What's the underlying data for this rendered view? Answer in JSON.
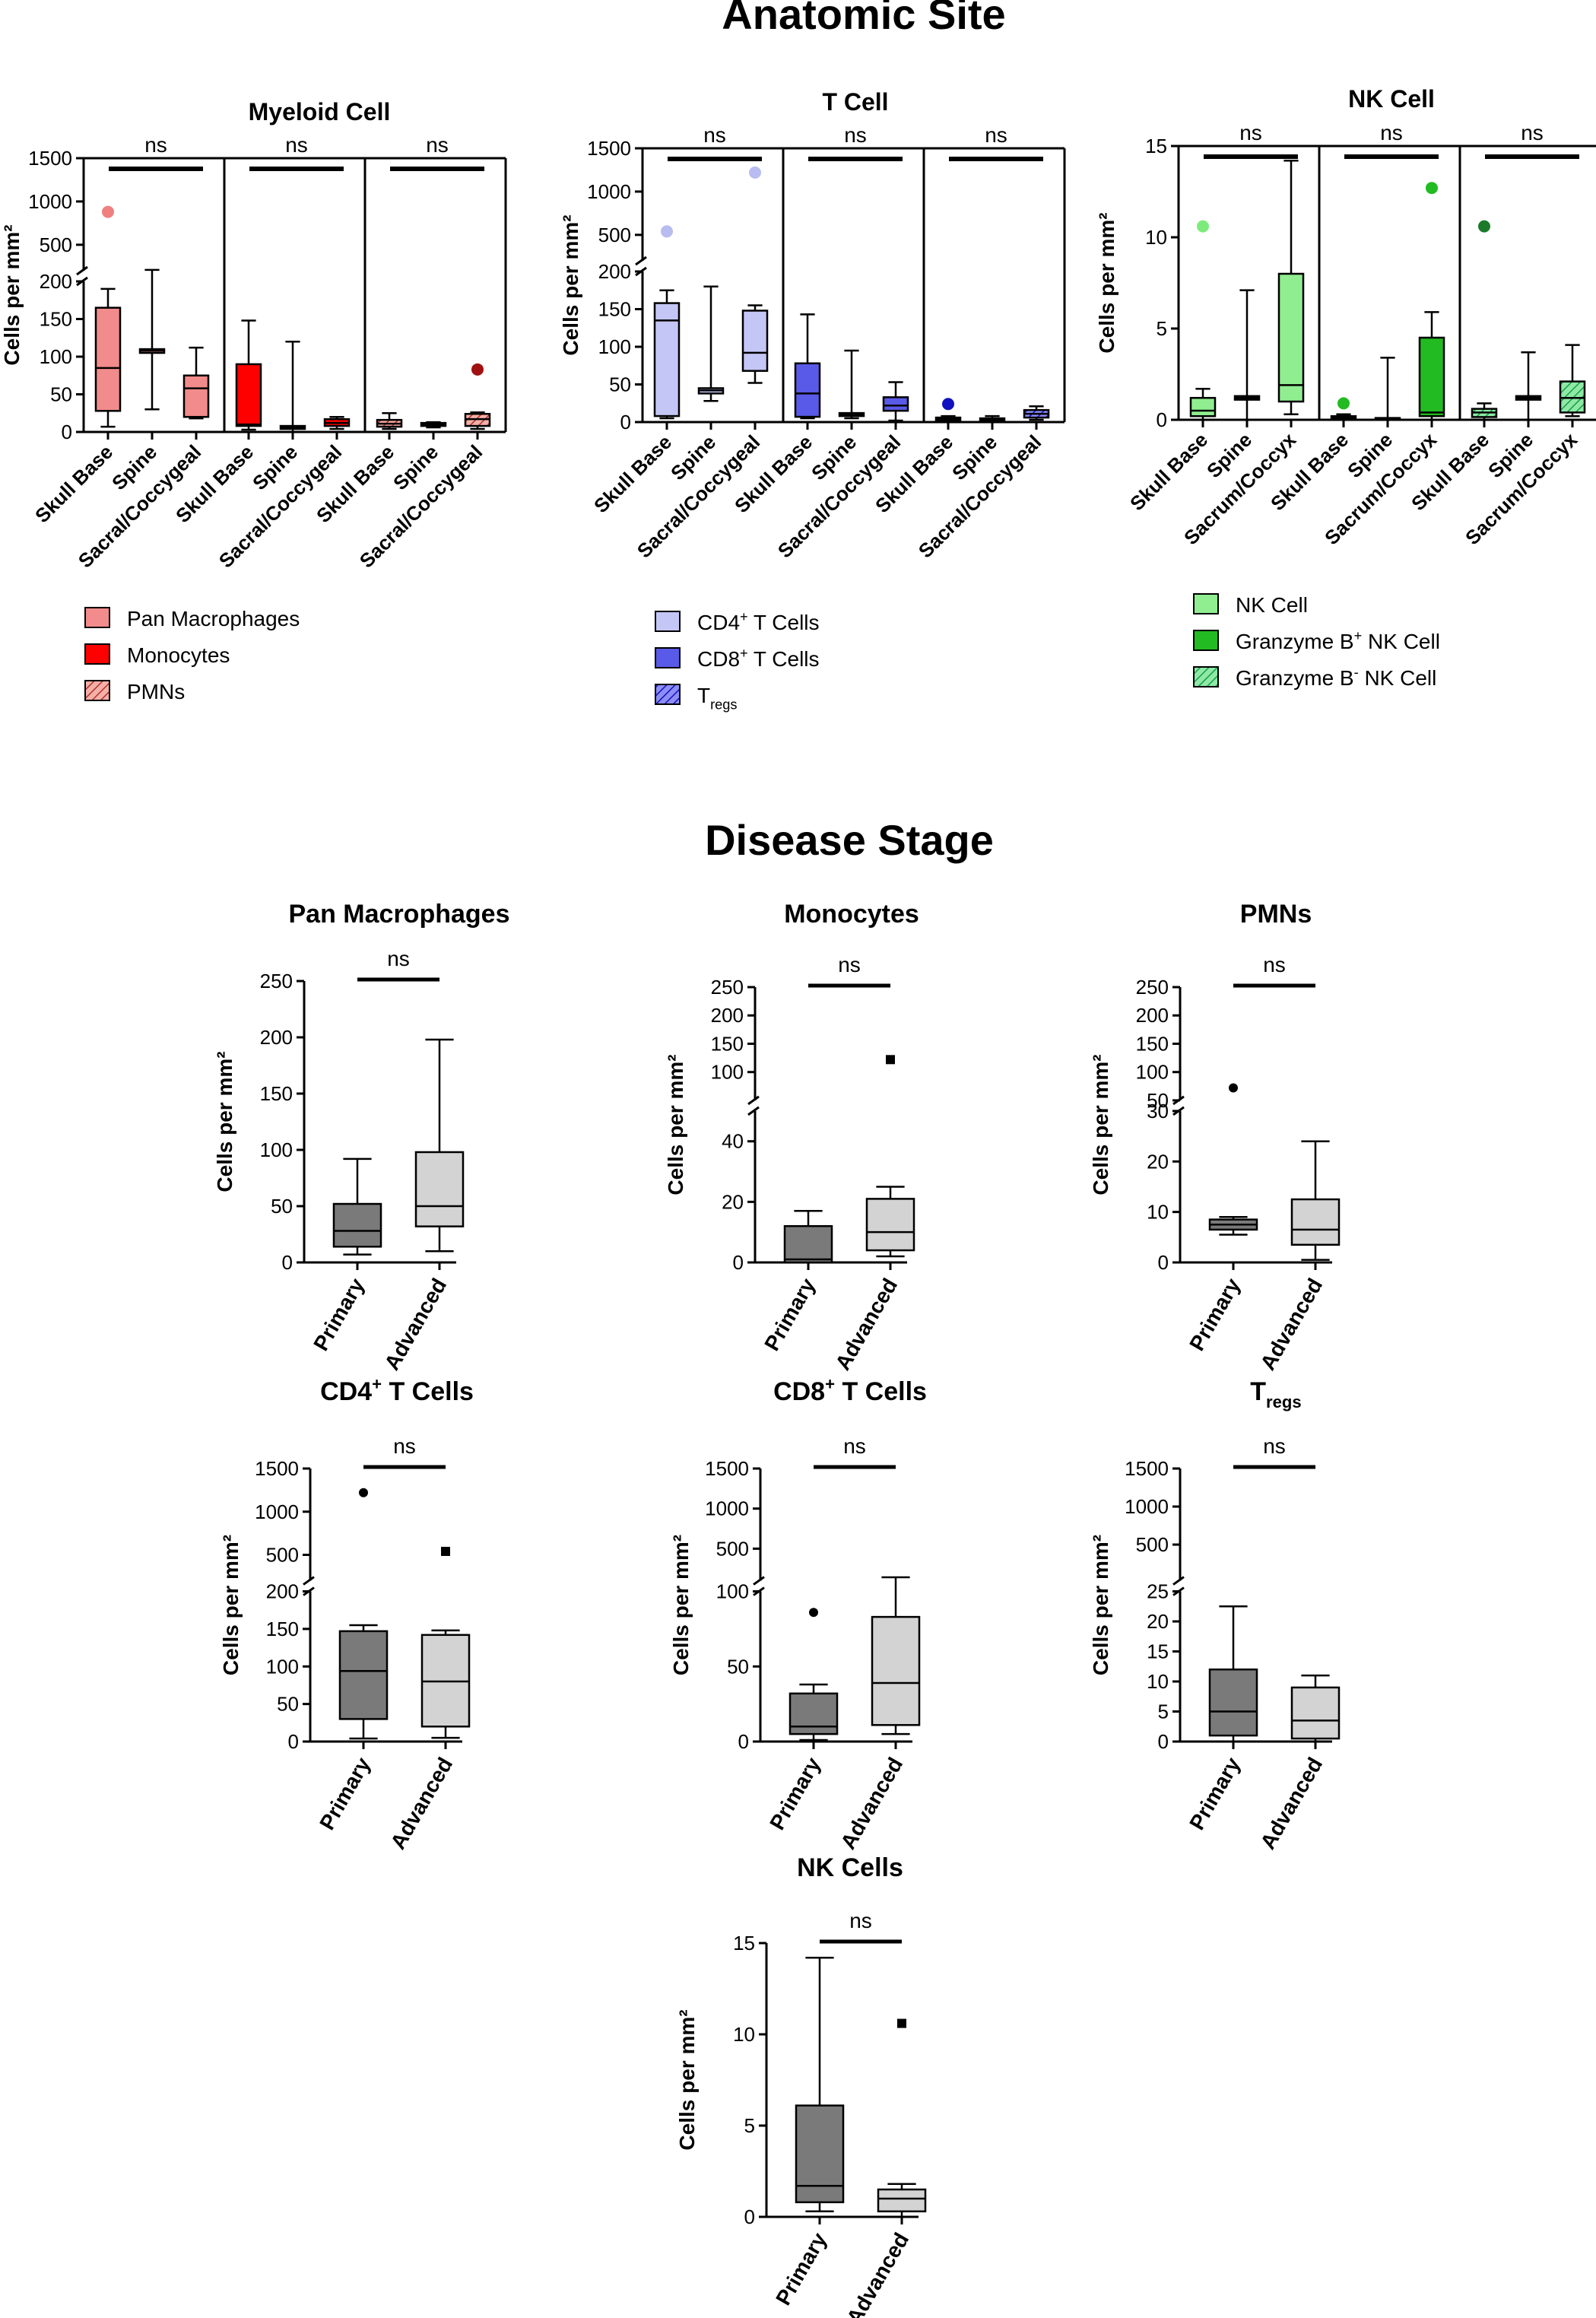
{
  "page": {
    "section1_title": "Anatomic Site",
    "section2_title": "Disease Stage",
    "y_label": "Cells per mm²"
  },
  "colors": {
    "pan_macrophages": "#f28b8b",
    "monocytes": "#ff0000",
    "pmns": "#d9534f",
    "cd4": "#c4c6f5",
    "cd8": "#5a5ae8",
    "tregs": "#2020e0",
    "nk": "#90ee90",
    "gzb_pos": "#22bb22",
    "gzb_neg": "#33cc66",
    "primary": "#7a7a7a",
    "advanced": "#d3d3d3"
  },
  "chart_data": [
    {
      "id": "myeloid",
      "type": "box",
      "title": "Myeloid Cell",
      "ylabel": "Cells per mm²",
      "y_axis": {
        "lower": [
          0,
          200
        ],
        "upper": [
          200,
          1500
        ],
        "lower_ticks": [
          0,
          50,
          100,
          150,
          200
        ],
        "upper_ticks": [
          200,
          500,
          1000,
          1500
        ]
      },
      "categories": [
        "Skull Base",
        "Spine",
        "Sacral/Coccygeal"
      ],
      "panels": [
        {
          "name": "Pan Macrophages",
          "sig": "ns",
          "color_key": "pan_macrophages",
          "pattern": "solid",
          "boxes": [
            {
              "min": 7,
              "q1": 28,
              "median": 85,
              "q3": 165,
              "max": 190,
              "outliers": [
                880
              ]
            },
            {
              "min": 30,
              "q1": 105,
              "median": 108,
              "q3": 110,
              "max": 210,
              "outliers": []
            },
            {
              "min": 18,
              "q1": 20,
              "median": 58,
              "q3": 75,
              "max": 112,
              "outliers": []
            }
          ]
        },
        {
          "name": "Monocytes",
          "sig": "ns",
          "color_key": "monocytes",
          "pattern": "solid",
          "boxes": [
            {
              "min": 3,
              "q1": 8,
              "median": 10,
              "q3": 90,
              "max": 148,
              "outliers": []
            },
            {
              "min": 0,
              "q1": 4,
              "median": 6,
              "q3": 8,
              "max": 120,
              "outliers": []
            },
            {
              "min": 4,
              "q1": 8,
              "median": 12,
              "q3": 17,
              "max": 20,
              "outliers": []
            }
          ]
        },
        {
          "name": "PMNs",
          "sig": "ns",
          "color_key": "pmns",
          "pattern": "hatch",
          "boxes": [
            {
              "min": 4,
              "q1": 7,
              "median": 11,
              "q3": 16,
              "max": 25,
              "outliers": []
            },
            {
              "min": 6,
              "q1": 8,
              "median": 10,
              "q3": 12,
              "max": 13,
              "outliers": []
            },
            {
              "min": 4,
              "q1": 8,
              "median": 17,
              "q3": 24,
              "max": 26,
              "outliers": [
                83
              ]
            }
          ]
        }
      ],
      "legend": [
        "Pan Macrophages",
        "Monocytes",
        "PMNs"
      ]
    },
    {
      "id": "tcell",
      "type": "box",
      "title": "T Cell",
      "ylabel": "Cells per mm²",
      "y_axis": {
        "lower": [
          0,
          200
        ],
        "upper": [
          200,
          1500
        ],
        "lower_ticks": [
          0,
          50,
          100,
          150,
          200
        ],
        "upper_ticks": [
          200,
          500,
          1000,
          1500
        ]
      },
      "categories": [
        "Skull Base",
        "Spine",
        "Sacral/Coccygeal"
      ],
      "panels": [
        {
          "name": "CD4+ T Cells",
          "sig": "ns",
          "color_key": "cd4",
          "pattern": "solid",
          "boxes": [
            {
              "min": 5,
              "q1": 8,
              "median": 135,
              "q3": 158,
              "max": 175,
              "outliers": [
                540
              ]
            },
            {
              "min": 28,
              "q1": 38,
              "median": 42,
              "q3": 45,
              "max": 180,
              "outliers": []
            },
            {
              "min": 52,
              "q1": 68,
              "median": 92,
              "q3": 148,
              "max": 155,
              "outliers": [
                1220
              ]
            }
          ]
        },
        {
          "name": "CD8+ T Cells",
          "sig": "ns",
          "color_key": "cd8",
          "pattern": "solid",
          "boxes": [
            {
              "min": 5,
              "q1": 7,
              "median": 38,
              "q3": 78,
              "max": 143,
              "outliers": []
            },
            {
              "min": 5,
              "q1": 8,
              "median": 10,
              "q3": 12,
              "max": 95,
              "outliers": []
            },
            {
              "min": 2,
              "q1": 15,
              "median": 22,
              "q3": 33,
              "max": 53,
              "outliers": []
            }
          ]
        },
        {
          "name": "Tregs",
          "sig": "ns",
          "color_key": "tregs",
          "pattern": "hatch",
          "boxes": [
            {
              "min": 0,
              "q1": 2,
              "median": 4,
              "q3": 6,
              "max": 8,
              "outliers": [
                24
              ]
            },
            {
              "min": 0,
              "q1": 2,
              "median": 4,
              "q3": 5,
              "max": 8,
              "outliers": []
            },
            {
              "min": 3,
              "q1": 6,
              "median": 11,
              "q3": 16,
              "max": 21,
              "outliers": []
            }
          ]
        }
      ],
      "legend_parts": [
        {
          "main": "CD4",
          "sup": "+",
          "sub": "",
          "rest": " T Cells"
        },
        {
          "main": "CD8",
          "sup": "+",
          "sub": "",
          "rest": " T Cells"
        },
        {
          "main": "T",
          "sup": "",
          "sub": "regs",
          "rest": ""
        }
      ]
    },
    {
      "id": "nkcell",
      "type": "box",
      "title": "NK Cell",
      "ylabel": "Cells per mm²",
      "y_axis": {
        "range": [
          0,
          15
        ],
        "ticks": [
          0,
          5,
          10,
          15
        ]
      },
      "categories": [
        "Skull Base",
        "Spine",
        "Sacrum/Coccyx"
      ],
      "panels": [
        {
          "name": "NK Cell",
          "sig": "ns",
          "color_key": "nk",
          "pattern": "solid",
          "boxes": [
            {
              "min": 0,
              "q1": 0.2,
              "median": 0.5,
              "q3": 1.2,
              "max": 1.7,
              "outliers": [
                10.6
              ]
            },
            {
              "min": 0,
              "q1": 1.1,
              "median": 1.2,
              "q3": 1.3,
              "max": 7.1,
              "outliers": []
            },
            {
              "min": 0.3,
              "q1": 1.0,
              "median": 1.9,
              "q3": 8.0,
              "max": 14.2,
              "outliers": []
            }
          ]
        },
        {
          "name": "Granzyme B+ NK Cell",
          "sig": "ns",
          "color_key": "gzb_pos",
          "pattern": "solid",
          "boxes": [
            {
              "min": 0,
              "q1": 0.05,
              "median": 0.1,
              "q3": 0.2,
              "max": 0.3,
              "outliers": [
                0.9
              ]
            },
            {
              "min": 0,
              "q1": 0,
              "median": 0.05,
              "q3": 0.1,
              "max": 3.4,
              "outliers": []
            },
            {
              "min": 0,
              "q1": 0.2,
              "median": 0.4,
              "q3": 4.5,
              "max": 5.9,
              "outliers": [
                12.7
              ]
            }
          ]
        },
        {
          "name": "Granzyme B- NK Cell",
          "sig": "ns",
          "color_key": "gzb_neg",
          "pattern": "hatch",
          "boxes": [
            {
              "min": 0,
              "q1": 0.15,
              "median": 0.4,
              "q3": 0.6,
              "max": 0.9,
              "outliers": [
                10.6
              ]
            },
            {
              "min": 0,
              "q1": 1.1,
              "median": 1.2,
              "q3": 1.3,
              "max": 3.7,
              "outliers": []
            },
            {
              "min": 0.2,
              "q1": 0.4,
              "median": 1.2,
              "q3": 2.1,
              "max": 4.1,
              "outliers": []
            }
          ]
        }
      ],
      "legend_parts": [
        {
          "main": "NK Cell",
          "sup": "",
          "sub": "",
          "rest": ""
        },
        {
          "main": "Granzyme B",
          "sup": "+",
          "sub": "",
          "rest": " NK Cell"
        },
        {
          "main": "Granzyme B",
          "sup": "-",
          "sub": "",
          "rest": " NK Cell"
        }
      ]
    },
    {
      "id": "ds_panmac",
      "type": "box",
      "title": "Pan Macrophages",
      "sig": "ns",
      "ylabel": "Cells per mm²",
      "y_axis": {
        "range": [
          0,
          250
        ],
        "ticks": [
          0,
          50,
          100,
          150,
          200,
          250
        ]
      },
      "categories": [
        "Primary",
        "Advanced"
      ],
      "boxes": [
        {
          "min": 7,
          "q1": 14,
          "median": 28,
          "q3": 52,
          "max": 92,
          "outliers": []
        },
        {
          "min": 10,
          "q1": 32,
          "median": 50,
          "q3": 98,
          "max": 198,
          "outliers": []
        }
      ]
    },
    {
      "id": "ds_mono",
      "type": "box",
      "title": "Monocytes",
      "sig": "ns",
      "ylabel": "Cells per mm²",
      "y_axis": {
        "lower": [
          0,
          50
        ],
        "upper": [
          50,
          250
        ],
        "lower_ticks": [
          0,
          20,
          40
        ],
        "upper_ticks": [
          50,
          100,
          150,
          200,
          250
        ]
      },
      "categories": [
        "Primary",
        "Advanced"
      ],
      "boxes": [
        {
          "min": 0,
          "q1": 0,
          "median": 1,
          "q3": 12,
          "max": 17,
          "outliers": []
        },
        {
          "min": 2,
          "q1": 4,
          "median": 10,
          "q3": 21,
          "max": 25,
          "outliers": [
            122
          ]
        }
      ]
    },
    {
      "id": "ds_pmn",
      "type": "box",
      "title": "PMNs",
      "sig": "ns",
      "ylabel": "Cells per mm²",
      "y_axis": {
        "lower": [
          0,
          30
        ],
        "upper": [
          50,
          250
        ],
        "lower_ticks": [
          0,
          10,
          20,
          30
        ],
        "upper_ticks": [
          50,
          100,
          150,
          200,
          250
        ]
      },
      "categories": [
        "Primary",
        "Advanced"
      ],
      "boxes": [
        {
          "min": 5.5,
          "q1": 6.5,
          "median": 7.5,
          "q3": 8.5,
          "max": 9,
          "outliers": [
            72
          ]
        },
        {
          "min": 0.5,
          "q1": 3.5,
          "median": 6.5,
          "q3": 12.5,
          "max": 24,
          "outliers": []
        }
      ]
    },
    {
      "id": "ds_cd4",
      "type": "box",
      "title_parts": {
        "main": "CD4",
        "sup": "+",
        "sub": "",
        "rest": " T Cells"
      },
      "sig": "ns",
      "ylabel": "Cells per mm²",
      "y_axis": {
        "lower": [
          0,
          200
        ],
        "upper": [
          200,
          1500
        ],
        "lower_ticks": [
          0,
          50,
          100,
          150,
          200
        ],
        "upper_ticks": [
          200,
          500,
          1000,
          1500
        ]
      },
      "categories": [
        "Primary",
        "Advanced"
      ],
      "boxes": [
        {
          "min": 4,
          "q1": 30,
          "median": 94,
          "q3": 147,
          "max": 155,
          "outliers": [
            1220
          ]
        },
        {
          "min": 5,
          "q1": 20,
          "median": 80,
          "q3": 142,
          "max": 148,
          "outliers": [
            540
          ]
        }
      ]
    },
    {
      "id": "ds_cd8",
      "type": "box",
      "title_parts": {
        "main": "CD8",
        "sup": "+",
        "sub": "",
        "rest": " T Cells"
      },
      "sig": "ns",
      "ylabel": "Cells per mm²",
      "y_axis": {
        "lower": [
          0,
          100
        ],
        "upper": [
          100,
          1500
        ],
        "lower_ticks": [
          0,
          50,
          100
        ],
        "upper_ticks": [
          100,
          500,
          1000,
          1500
        ]
      },
      "categories": [
        "Primary",
        "Advanced"
      ],
      "boxes": [
        {
          "min": 1,
          "q1": 5,
          "median": 10,
          "q3": 32,
          "max": 38,
          "outliers": [
            86
          ]
        },
        {
          "min": 5,
          "q1": 11,
          "median": 39,
          "q3": 83,
          "max": 143,
          "outliers": []
        }
      ]
    },
    {
      "id": "ds_treg",
      "type": "box",
      "title_parts": {
        "main": "T",
        "sup": "",
        "sub": "regs",
        "rest": ""
      },
      "sig": "ns",
      "ylabel": "Cells per mm²",
      "y_axis": {
        "lower": [
          0,
          25
        ],
        "upper": [
          25,
          1500
        ],
        "lower_ticks": [
          0,
          5,
          10,
          15,
          20,
          25
        ],
        "upper_ticks": [
          25,
          500,
          1000,
          1500
        ]
      },
      "categories": [
        "Primary",
        "Advanced"
      ],
      "boxes": [
        {
          "min": 0,
          "q1": 1,
          "median": 5,
          "q3": 12,
          "max": 22.5,
          "outliers": []
        },
        {
          "min": 0,
          "q1": 0.5,
          "median": 3.5,
          "q3": 9,
          "max": 11,
          "outliers": []
        }
      ]
    },
    {
      "id": "ds_nk",
      "type": "box",
      "title": "NK Cells",
      "sig": "ns",
      "ylabel": "Cells per mm²",
      "y_axis": {
        "range": [
          0,
          15
        ],
        "ticks": [
          0,
          5,
          10,
          15
        ]
      },
      "categories": [
        "Primary",
        "Advanced"
      ],
      "boxes": [
        {
          "min": 0.3,
          "q1": 0.8,
          "median": 1.7,
          "q3": 6.1,
          "max": 14.2,
          "outliers": []
        },
        {
          "min": 0,
          "q1": 0.3,
          "median": 1.0,
          "q3": 1.5,
          "max": 1.8,
          "outliers": [
            10.6
          ]
        }
      ]
    }
  ]
}
